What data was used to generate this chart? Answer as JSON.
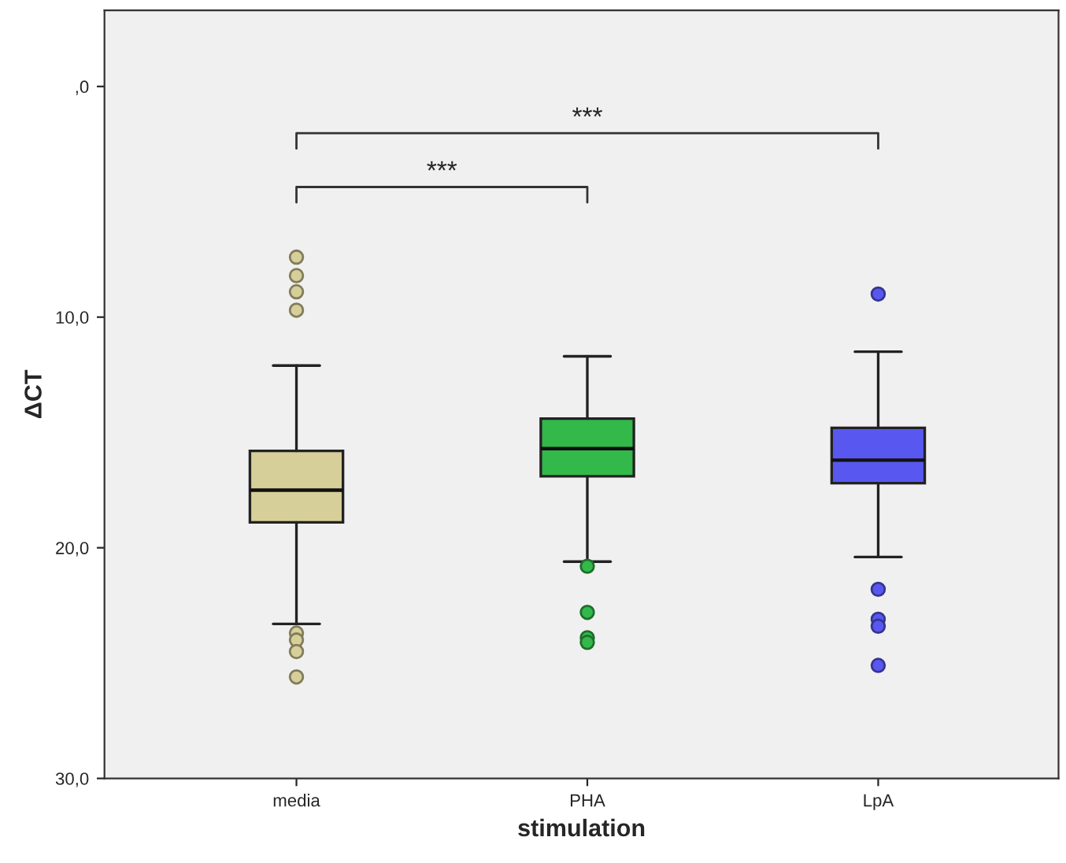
{
  "chart_data": {
    "type": "box",
    "xlabel": "stimulation",
    "ylabel": "ΔCT",
    "categories": [
      "media",
      "PHA",
      "LpA"
    ],
    "colors": [
      "#d6cf99",
      "#33b84a",
      "#5858f0"
    ],
    "boxes": [
      {
        "low": 12.1,
        "q1": 15.8,
        "median": 17.5,
        "q3": 18.9,
        "high": 23.3,
        "outliers": [
          7.4,
          8.2,
          8.9,
          9.7,
          23.7,
          24.0,
          24.5,
          25.6
        ]
      },
      {
        "low": 11.7,
        "q1": 14.4,
        "median": 15.7,
        "q3": 16.9,
        "high": 20.6,
        "outliers": [
          20.8,
          22.8,
          23.9,
          24.1
        ]
      },
      {
        "low": 11.5,
        "q1": 14.8,
        "median": 16.2,
        "q3": 17.2,
        "high": 20.4,
        "outliers": [
          9.0,
          21.8,
          23.1,
          23.4,
          25.1
        ]
      }
    ],
    "ylim": [
      30,
      -3.3
    ],
    "yticks": [
      {
        "value": 0,
        "label": ",0"
      },
      {
        "value": 10,
        "label": "10,0"
      },
      {
        "value": 20,
        "label": "20,0"
      },
      {
        "value": 30,
        "label": "30,0"
      }
    ],
    "annotations": [
      "***",
      "***"
    ],
    "grid": false,
    "legend": false
  }
}
